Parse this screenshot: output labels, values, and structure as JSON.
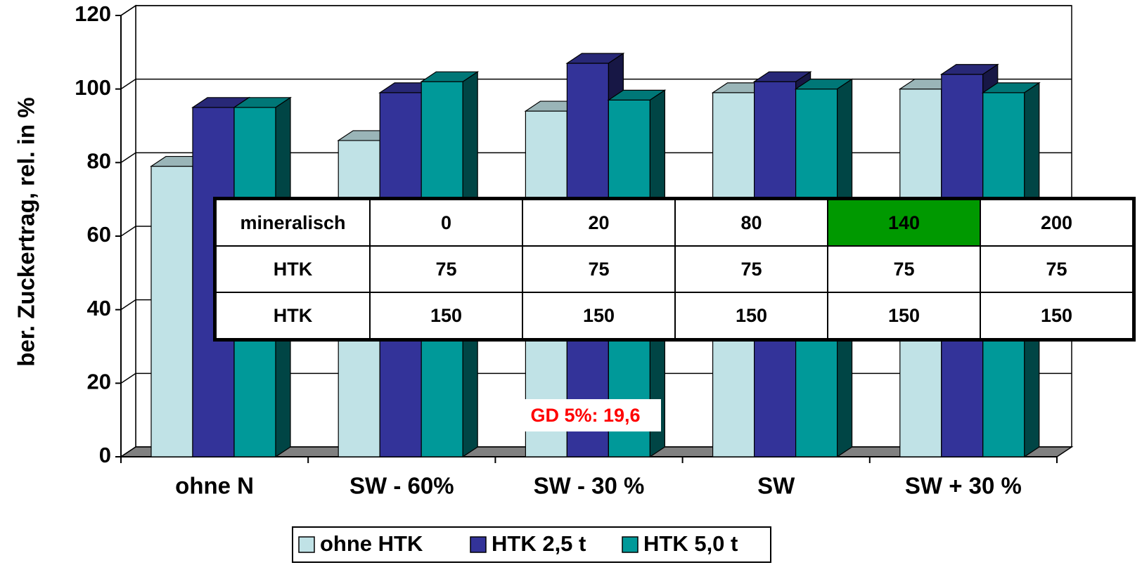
{
  "chart_data": {
    "type": "bar3d",
    "y_label": "ber. Zuckertrag, rel. in %",
    "categories": [
      "ohne N",
      "SW - 60%",
      "SW - 30 %",
      "SW",
      "SW + 30 %"
    ],
    "series": [
      {
        "name": "ohne HTK",
        "color": "#c0e2e6",
        "values": [
          79,
          86,
          94,
          99,
          100
        ]
      },
      {
        "name": "HTK 2,5 t",
        "color": "#333399",
        "values": [
          95,
          99,
          107,
          102,
          104
        ]
      },
      {
        "name": "HTK 5,0 t",
        "color": "#009999",
        "values": [
          95,
          102,
          97,
          100,
          99
        ]
      }
    ],
    "ylim": [
      0,
      120
    ],
    "yticks": [
      0,
      20,
      40,
      60,
      80,
      100,
      120
    ],
    "grid": true,
    "annotation": "GD 5%: 19,6",
    "annotation_color": "#ff0000",
    "legend": "bottom"
  },
  "table": {
    "rows": [
      [
        "mineralisch",
        "0",
        "20",
        "80",
        "140",
        "200"
      ],
      [
        "HTK",
        "75",
        "75",
        "75",
        "75",
        "75"
      ],
      [
        "HTK",
        "150",
        "150",
        "150",
        "150",
        "150"
      ]
    ],
    "highlight": {
      "row": 0,
      "col": 4,
      "color": "#009900"
    }
  }
}
